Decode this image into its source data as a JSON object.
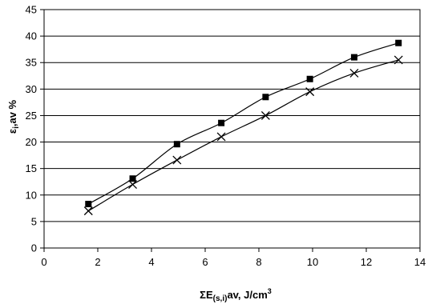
{
  "chart_data": {
    "type": "line",
    "title": "",
    "xlabel": {
      "main": "ΣE",
      "sub": "(s,i)",
      "after": "av,  J/cm",
      "sup": "3"
    },
    "ylabel": {
      "main": "ε",
      "sub": "i",
      "after": ",av %"
    },
    "xlim": [
      0,
      14
    ],
    "ylim": [
      0,
      45
    ],
    "xticks": [
      0,
      2,
      4,
      6,
      8,
      10,
      12,
      14
    ],
    "yticks": [
      0,
      5,
      10,
      15,
      20,
      25,
      30,
      35,
      40,
      45
    ],
    "grid": {
      "horizontal": true,
      "vertical": false
    },
    "series": [
      {
        "marker": "square",
        "x": [
          1.65,
          3.3,
          4.95,
          6.6,
          8.25,
          9.9,
          11.55,
          13.2
        ],
        "y": [
          8.3,
          13.1,
          19.6,
          23.6,
          28.5,
          31.9,
          36.0,
          38.7
        ]
      },
      {
        "marker": "x",
        "x": [
          1.65,
          3.3,
          4.95,
          6.6,
          8.25,
          9.9,
          11.55,
          13.2
        ],
        "y": [
          7.0,
          12.0,
          16.6,
          21.0,
          25.0,
          29.5,
          33.0,
          35.5
        ]
      }
    ]
  }
}
